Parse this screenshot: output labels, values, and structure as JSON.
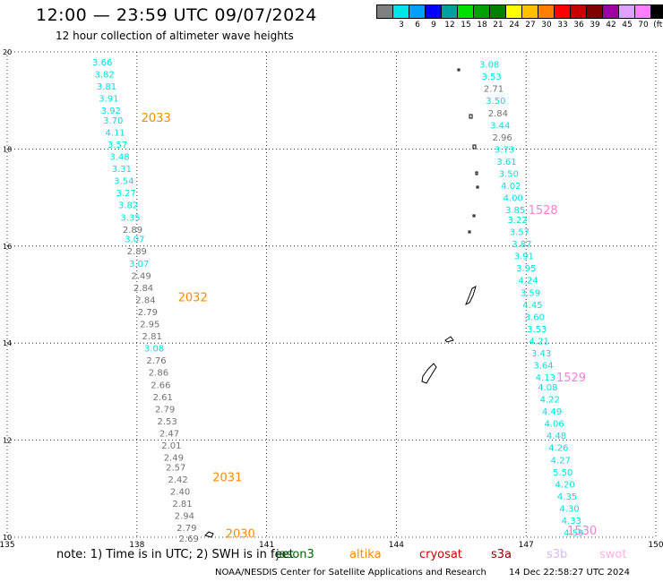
{
  "header": {
    "title": "12:00 — 23:59 UTC 09/07/2024",
    "subtitle": "12 hour collection of altimeter wave heights"
  },
  "legend": {
    "labels": [
      "",
      "3",
      "6",
      "9",
      "12",
      "15",
      "18",
      "21",
      "24",
      "27",
      "30",
      "33",
      "36",
      "39",
      "42",
      "45",
      "70",
      "(ft)"
    ],
    "colors": [
      "#808080",
      "#00e5e5",
      "#00a0ff",
      "#0000ff",
      "#00a0a0",
      "#00e000",
      "#00a000",
      "#008000",
      "#ffff00",
      "#ffc000",
      "#ff8000",
      "#ff0000",
      "#c80000",
      "#800000",
      "#a000a0",
      "#e0a0ff",
      "#ff80ff",
      "#000000"
    ]
  },
  "footer": {
    "note": "note: 1) Time is in UTC; 2) SWH is in feet",
    "satellites": [
      {
        "name": "jason3",
        "color": "#006400"
      },
      {
        "name": "altika",
        "color": "#ff8c00"
      },
      {
        "name": "cryosat",
        "color": "#cc0000"
      },
      {
        "name": "s3a",
        "color": "#8b0000"
      },
      {
        "name": "s3b",
        "color": "#d8b8f0"
      },
      {
        "name": "swot",
        "color": "#ffb0e8"
      }
    ],
    "credit": "NOAA/NESDIS Center for Satellite Applications and Research",
    "timestamp": "14 Dec 22:58:27 UTC 2024"
  },
  "chart_data": {
    "type": "scatter",
    "title": "12:00 — 23:59 UTC 09/07/2024",
    "subtitle": "12 hour collection of altimeter wave heights",
    "xlim": [
      135,
      150
    ],
    "ylim": [
      10,
      20
    ],
    "xticks": [
      "135",
      "138",
      "141",
      "144",
      "147",
      "150"
    ],
    "yticks": [
      "10",
      "12",
      "14",
      "16",
      "18",
      "20"
    ],
    "grid": true,
    "units": "(ft)",
    "colors": {
      "gray": "#707070",
      "cyan": "#00e0e0",
      "altika": "#ff8c00",
      "swot": "#ff80d0"
    },
    "track_labels": [
      {
        "text": "2033",
        "lon": 138.1,
        "lat": 18.65,
        "color": "altika"
      },
      {
        "text": "2032",
        "lon": 138.95,
        "lat": 14.95,
        "color": "altika"
      },
      {
        "text": "2031",
        "lon": 139.75,
        "lat": 11.25,
        "color": "altika"
      },
      {
        "text": "2030",
        "lon": 140.05,
        "lat": 10.08,
        "color": "altika"
      },
      {
        "text": "1528",
        "lon": 147.05,
        "lat": 16.75,
        "color": "swot"
      },
      {
        "text": "1529",
        "lon": 147.7,
        "lat": 13.3,
        "color": "swot"
      },
      {
        "text": "1530",
        "lon": 147.95,
        "lat": 10.15,
        "color": "swot"
      }
    ],
    "series": [
      {
        "points": [
          {
            "lon": 137.2,
            "lat": 19.8,
            "v": "3.66",
            "c": "cyan"
          },
          {
            "lon": 137.25,
            "lat": 19.55,
            "v": "3.82",
            "c": "cyan"
          },
          {
            "lon": 137.3,
            "lat": 19.3,
            "v": "3.81",
            "c": "cyan"
          },
          {
            "lon": 137.35,
            "lat": 19.05,
            "v": "3.91",
            "c": "cyan"
          },
          {
            "lon": 137.4,
            "lat": 18.8,
            "v": "3.92",
            "c": "cyan"
          },
          {
            "lon": 137.45,
            "lat": 18.6,
            "v": "3.70",
            "c": "cyan"
          },
          {
            "lon": 137.5,
            "lat": 18.35,
            "v": "4.11",
            "c": "cyan"
          },
          {
            "lon": 137.55,
            "lat": 18.1,
            "v": "3.57",
            "c": "cyan"
          },
          {
            "lon": 137.6,
            "lat": 17.85,
            "v": "3.48",
            "c": "cyan"
          },
          {
            "lon": 137.65,
            "lat": 17.6,
            "v": "3.31",
            "c": "cyan"
          },
          {
            "lon": 137.7,
            "lat": 17.35,
            "v": "3.54",
            "c": "cyan"
          },
          {
            "lon": 137.75,
            "lat": 17.1,
            "v": "3.27",
            "c": "cyan"
          },
          {
            "lon": 137.8,
            "lat": 16.85,
            "v": "3.82",
            "c": "cyan"
          },
          {
            "lon": 137.85,
            "lat": 16.6,
            "v": "3.35",
            "c": "cyan"
          },
          {
            "lon": 137.9,
            "lat": 16.35,
            "v": "2.89",
            "c": "gray"
          },
          {
            "lon": 137.95,
            "lat": 16.15,
            "v": "3.07",
            "c": "cyan"
          },
          {
            "lon": 138.0,
            "lat": 15.9,
            "v": "2.89",
            "c": "gray"
          },
          {
            "lon": 138.05,
            "lat": 15.65,
            "v": "3.07",
            "c": "cyan"
          },
          {
            "lon": 138.1,
            "lat": 15.4,
            "v": "2.49",
            "c": "gray"
          },
          {
            "lon": 138.15,
            "lat": 15.15,
            "v": "2.84",
            "c": "gray"
          },
          {
            "lon": 138.2,
            "lat": 14.9,
            "v": "2.84",
            "c": "gray"
          },
          {
            "lon": 138.25,
            "lat": 14.65,
            "v": "2.79",
            "c": "gray"
          },
          {
            "lon": 138.3,
            "lat": 14.4,
            "v": "2.95",
            "c": "gray"
          },
          {
            "lon": 138.35,
            "lat": 14.15,
            "v": "2.81",
            "c": "gray"
          },
          {
            "lon": 138.4,
            "lat": 13.9,
            "v": "3.08",
            "c": "cyan"
          },
          {
            "lon": 138.45,
            "lat": 13.65,
            "v": "2.76",
            "c": "gray"
          },
          {
            "lon": 138.5,
            "lat": 13.4,
            "v": "2.86",
            "c": "gray"
          },
          {
            "lon": 138.55,
            "lat": 13.15,
            "v": "2.66",
            "c": "gray"
          },
          {
            "lon": 138.6,
            "lat": 12.9,
            "v": "2.61",
            "c": "gray"
          },
          {
            "lon": 138.65,
            "lat": 12.65,
            "v": "2.79",
            "c": "gray"
          },
          {
            "lon": 138.7,
            "lat": 12.4,
            "v": "2.53",
            "c": "gray"
          },
          {
            "lon": 138.75,
            "lat": 12.15,
            "v": "2.47",
            "c": "gray"
          },
          {
            "lon": 138.8,
            "lat": 11.9,
            "v": "2.01",
            "c": "gray"
          },
          {
            "lon": 138.85,
            "lat": 11.65,
            "v": "2.49",
            "c": "gray"
          },
          {
            "lon": 138.9,
            "lat": 11.45,
            "v": "2.57",
            "c": "gray"
          },
          {
            "lon": 138.95,
            "lat": 11.2,
            "v": "2.42",
            "c": "gray"
          },
          {
            "lon": 139.0,
            "lat": 10.95,
            "v": "2.40",
            "c": "gray"
          },
          {
            "lon": 139.05,
            "lat": 10.7,
            "v": "2.81",
            "c": "gray"
          },
          {
            "lon": 139.1,
            "lat": 10.45,
            "v": "2.94",
            "c": "gray"
          },
          {
            "lon": 139.15,
            "lat": 10.2,
            "v": "2.79",
            "c": "gray"
          },
          {
            "lon": 139.2,
            "lat": 9.98,
            "v": "2.69",
            "c": "gray"
          }
        ]
      },
      {
        "points": [
          {
            "lon": 146.15,
            "lat": 19.75,
            "v": "3.08",
            "c": "cyan"
          },
          {
            "lon": 146.2,
            "lat": 19.5,
            "v": "3.53",
            "c": "cyan"
          },
          {
            "lon": 146.25,
            "lat": 19.25,
            "v": "2.71",
            "c": "gray"
          },
          {
            "lon": 146.3,
            "lat": 19.0,
            "v": "3.50",
            "c": "cyan"
          },
          {
            "lon": 146.35,
            "lat": 18.75,
            "v": "2.84",
            "c": "gray"
          },
          {
            "lon": 146.4,
            "lat": 18.5,
            "v": "3.44",
            "c": "cyan"
          },
          {
            "lon": 146.45,
            "lat": 18.25,
            "v": "2.96",
            "c": "gray"
          },
          {
            "lon": 146.5,
            "lat": 18.0,
            "v": "3.73",
            "c": "cyan"
          },
          {
            "lon": 146.55,
            "lat": 17.75,
            "v": "3.61",
            "c": "cyan"
          },
          {
            "lon": 146.6,
            "lat": 17.5,
            "v": "3.50",
            "c": "cyan"
          },
          {
            "lon": 146.65,
            "lat": 17.25,
            "v": "4.02",
            "c": "cyan"
          },
          {
            "lon": 146.7,
            "lat": 17.0,
            "v": "4.00",
            "c": "cyan"
          },
          {
            "lon": 146.75,
            "lat": 16.75,
            "v": "3.85",
            "c": "cyan"
          },
          {
            "lon": 146.8,
            "lat": 16.55,
            "v": "3.22",
            "c": "cyan"
          },
          {
            "lon": 146.85,
            "lat": 16.3,
            "v": "3.57",
            "c": "cyan"
          },
          {
            "lon": 146.9,
            "lat": 16.05,
            "v": "3.87",
            "c": "cyan"
          },
          {
            "lon": 146.95,
            "lat": 15.8,
            "v": "3.91",
            "c": "cyan"
          },
          {
            "lon": 147.0,
            "lat": 15.55,
            "v": "3.95",
            "c": "cyan"
          },
          {
            "lon": 147.05,
            "lat": 15.3,
            "v": "4.24",
            "c": "cyan"
          },
          {
            "lon": 147.1,
            "lat": 15.05,
            "v": "3.59",
            "c": "cyan"
          },
          {
            "lon": 147.15,
            "lat": 14.8,
            "v": "4.45",
            "c": "cyan"
          },
          {
            "lon": 147.2,
            "lat": 14.55,
            "v": "3.60",
            "c": "cyan"
          },
          {
            "lon": 147.25,
            "lat": 14.3,
            "v": "3.53",
            "c": "cyan"
          },
          {
            "lon": 147.3,
            "lat": 14.05,
            "v": "4.21",
            "c": "cyan"
          },
          {
            "lon": 147.35,
            "lat": 13.8,
            "v": "3.43",
            "c": "cyan"
          },
          {
            "lon": 147.4,
            "lat": 13.55,
            "v": "3.64",
            "c": "cyan"
          },
          {
            "lon": 147.45,
            "lat": 13.3,
            "v": "4.13",
            "c": "cyan"
          },
          {
            "lon": 147.5,
            "lat": 13.1,
            "v": "4.08",
            "c": "cyan"
          },
          {
            "lon": 147.55,
            "lat": 12.85,
            "v": "4.22",
            "c": "cyan"
          },
          {
            "lon": 147.6,
            "lat": 12.6,
            "v": "4.49",
            "c": "cyan"
          },
          {
            "lon": 147.65,
            "lat": 12.35,
            "v": "4.06",
            "c": "cyan"
          },
          {
            "lon": 147.7,
            "lat": 12.1,
            "v": "4.48",
            "c": "cyan"
          },
          {
            "lon": 147.75,
            "lat": 11.85,
            "v": "4.26",
            "c": "cyan"
          },
          {
            "lon": 147.8,
            "lat": 11.6,
            "v": "4.27",
            "c": "cyan"
          },
          {
            "lon": 147.85,
            "lat": 11.35,
            "v": "5.50",
            "c": "cyan"
          },
          {
            "lon": 147.9,
            "lat": 11.1,
            "v": "4.20",
            "c": "cyan"
          },
          {
            "lon": 147.95,
            "lat": 10.85,
            "v": "4.35",
            "c": "cyan"
          },
          {
            "lon": 148.0,
            "lat": 10.6,
            "v": "4.30",
            "c": "cyan"
          },
          {
            "lon": 148.05,
            "lat": 10.35,
            "v": "4.33",
            "c": "cyan"
          },
          {
            "lon": 148.1,
            "lat": 10.1,
            "v": "4.59",
            "c": "cyan"
          }
        ]
      }
    ]
  }
}
